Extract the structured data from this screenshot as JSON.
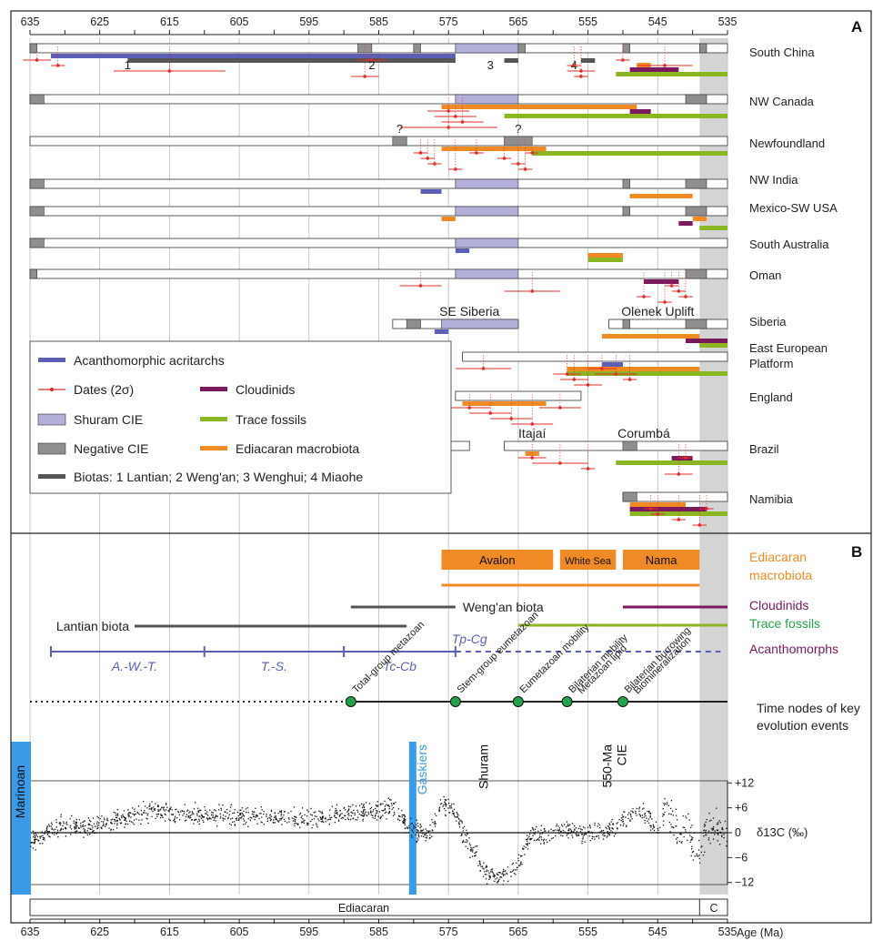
{
  "figure": {
    "panel_a_label": "A",
    "panel_b_label": "B",
    "bottom_axis_label": "Age (Ma)",
    "y_axis_label": "δ13C (‰)",
    "period_labels": [
      "Ediacaran",
      "C"
    ]
  },
  "colors": {
    "acritarchs": "#5b5fb5",
    "dates": "#e32b2b",
    "cloudinids": "#7a1a5c",
    "trace_fossils": "#8ab622",
    "shuram_cie": "#b3b0dc",
    "negative_cie": "#8f8f8f",
    "macrobiota": "#f08a24",
    "biotas": "#555555",
    "cambrian_band": "#d4d4d4",
    "marinoan": "#3a9be8",
    "gaskiers": "#3a9be8",
    "node": "#23a24a"
  },
  "chart_data": {
    "type": "timeline",
    "x_axis": {
      "label": "Age (Ma)",
      "range": [
        635,
        535
      ],
      "ticks": [
        635,
        625,
        615,
        605,
        595,
        585,
        575,
        565,
        555,
        545,
        535
      ],
      "reversed": true
    },
    "panel_a": {
      "regions": [
        {
          "name": "South China",
          "start": 635,
          "end": 535,
          "negative_cie": [
            [
              635,
              634
            ],
            [
              588,
              586
            ],
            [
              580,
              579
            ],
            [
              565,
              564
            ],
            [
              550,
              549
            ],
            [
              539,
              538
            ]
          ],
          "shuram": [
            [
              574,
              565
            ]
          ],
          "acritarchs": [
            [
              632,
              574
            ]
          ],
          "biotas": [
            [
              621,
              580
            ],
            [
              589,
              574
            ],
            [
              567,
              565
            ],
            [
              556,
              554
            ]
          ],
          "biota_labels": [
            {
              "text": "1",
              "x": 621
            },
            {
              "text": "2",
              "x": 586
            },
            {
              "text": "3",
              "x": 569
            },
            {
              "text": "4",
              "x": 557
            }
          ],
          "macrobiota": [
            [
              548,
              546
            ]
          ],
          "cloudinids": [
            [
              549,
              542
            ]
          ],
          "trace": [
            [
              551,
              535
            ]
          ],
          "dates": [
            [
              634,
              2
            ],
            [
              631,
              1
            ],
            [
              615,
              8
            ],
            [
              587,
              2
            ],
            [
              586,
              2
            ],
            [
              557,
              1
            ],
            [
              556,
              2
            ],
            [
              556,
              1
            ],
            [
              550,
              1
            ],
            [
              544,
              4
            ]
          ]
        },
        {
          "name": "NW Canada",
          "start": 635,
          "end": 535,
          "negative_cie": [
            [
              635,
              633
            ],
            [
              541,
              538
            ]
          ],
          "shuram": [
            [
              574,
              565
            ]
          ],
          "macrobiota": [
            [
              576,
              548
            ]
          ],
          "cloudinids": [
            [
              549,
              546
            ]
          ],
          "trace": [
            [
              567,
              535
            ]
          ],
          "dates": [
            [
              575,
              3
            ],
            [
              574,
              3
            ],
            [
              573,
              3
            ],
            [
              575,
              7
            ]
          ]
        },
        {
          "name": "Newfoundland",
          "start": 635,
          "end": 535,
          "negative_cie": [
            [
              583,
              581
            ],
            [
              567,
              563
            ]
          ],
          "negative_cie_q": [
            582,
            565
          ],
          "macrobiota": [
            [
              576,
              561
            ]
          ],
          "trace": [
            [
              563,
              535
            ]
          ],
          "dates": [
            [
              579,
              1
            ],
            [
              578,
              1
            ],
            [
              577,
              1
            ],
            [
              574,
              1
            ],
            [
              571,
              1
            ],
            [
              567,
              1
            ],
            [
              565,
              1
            ],
            [
              564,
              1
            ],
            [
              563,
              1
            ]
          ]
        },
        {
          "name": "NW India",
          "start": 635,
          "end": 535,
          "negative_cie": [
            [
              635,
              633
            ],
            [
              550,
              549
            ],
            [
              541,
              538
            ]
          ],
          "shuram": [
            [
              574,
              565
            ]
          ],
          "acritarchs": [
            [
              579,
              576
            ]
          ],
          "macrobiota": [
            [
              549,
              540
            ]
          ]
        },
        {
          "name": "Mexico-SW USA",
          "start": 635,
          "end": 535,
          "negative_cie": [
            [
              635,
              633
            ],
            [
              550,
              549
            ],
            [
              541,
              538
            ]
          ],
          "shuram": [
            [
              574,
              565
            ]
          ],
          "macrobiota": [
            [
              576,
              574
            ],
            [
              540,
              538
            ]
          ],
          "cloudinids": [
            [
              542,
              540
            ]
          ],
          "trace": [
            [
              539,
              535
            ]
          ]
        },
        {
          "name": "South Australia",
          "start": 635,
          "end": 535,
          "negative_cie": [
            [
              635,
              633
            ]
          ],
          "shuram": [
            [
              574,
              565
            ]
          ],
          "acritarchs": [
            [
              574,
              572
            ]
          ],
          "macrobiota": [
            [
              555,
              550
            ]
          ],
          "trace": [
            [
              555,
              550
            ]
          ]
        },
        {
          "name": "Oman",
          "start": 635,
          "end": 535,
          "negative_cie": [
            [
              635,
              634
            ],
            [
              541,
              538
            ]
          ],
          "shuram": [
            [
              574,
              565
            ]
          ],
          "cloudinids": [
            [
              547,
              542
            ]
          ],
          "dates": [
            [
              579,
              3
            ],
            [
              563,
              4
            ],
            [
              547,
              1
            ],
            [
              544,
              1
            ],
            [
              543,
              1
            ],
            [
              542,
              1
            ],
            [
              541,
              1
            ]
          ]
        },
        {
          "name": "Siberia",
          "start": 583,
          "end": 535,
          "gap": [
            565,
            552
          ],
          "negative_cie": [
            [
              581,
              579
            ],
            [
              550,
              549
            ],
            [
              541,
              538
            ]
          ],
          "shuram": [
            [
              576,
              565
            ]
          ],
          "acritarchs": [
            [
              577,
              575
            ]
          ],
          "macrobiota": [
            [
              553,
              539
            ]
          ],
          "cloudinids": [
            [
              541,
              535
            ]
          ],
          "trace": [
            [
              539,
              535
            ]
          ],
          "sub_labels": [
            {
              "text": "SE Siberia",
              "x": 572
            },
            {
              "text": "Olenek Uplift",
              "x": 545
            }
          ]
        },
        {
          "name": "East European Platform",
          "start": 573,
          "end": 535,
          "macrobiota": [
            [
              558,
              539
            ]
          ],
          "trace": [
            [
              558,
              535
            ]
          ],
          "acritarchs": [
            [
              553,
              550
            ]
          ],
          "dates": [
            [
              570,
              4
            ],
            [
              558,
              2
            ],
            [
              557,
              2
            ],
            [
              555,
              2
            ],
            [
              553,
              2
            ],
            [
              551,
              3
            ],
            [
              549,
              1
            ]
          ]
        },
        {
          "name": "England",
          "start": 574,
          "end": 556,
          "macrobiota": [
            [
              573,
              561
            ]
          ],
          "dates": [
            [
              572,
              3
            ],
            [
              569,
              3
            ],
            [
              566,
              3
            ],
            [
              563,
              3
            ],
            [
              559,
              3
            ]
          ]
        },
        {
          "name": "Brazil",
          "start": 581,
          "end": 535,
          "gap": [
            572,
            567
          ],
          "negative_cie": [
            [
              550,
              548
            ]
          ],
          "macrobiota": [
            [
              564,
              562
            ]
          ],
          "cloudinids": [
            [
              543,
              540
            ]
          ],
          "trace": [
            [
              551,
              535
            ]
          ],
          "dates": [
            [
              563,
              2
            ],
            [
              559,
              4
            ],
            [
              555,
              1
            ],
            [
              542,
              2
            ],
            [
              541,
              1
            ]
          ],
          "sub_labels": [
            {
              "text": "Itajaí",
              "x": 563
            },
            {
              "text": "Corumbá",
              "x": 547
            }
          ]
        },
        {
          "name": "Namibia",
          "start": 550,
          "end": 535,
          "negative_cie": [
            [
              550,
              548
            ]
          ],
          "macrobiota": [
            [
              549,
              541
            ]
          ],
          "cloudinids": [
            [
              549,
              538
            ]
          ],
          "trace": [
            [
              549,
              535
            ]
          ],
          "dates": [
            [
              546,
              1
            ],
            [
              545,
              1
            ],
            [
              542,
              1
            ],
            [
              539,
              1
            ],
            [
              538,
              1
            ]
          ]
        }
      ],
      "legend": [
        {
          "key": "acritarchs",
          "label": "Acanthomorphic acritarchs"
        },
        {
          "key": "dates",
          "label": "Dates (2σ)"
        },
        {
          "key": "cloudinids",
          "label": "Cloudinids"
        },
        {
          "key": "shuram",
          "label": "Shuram CIE"
        },
        {
          "key": "trace",
          "label": "Trace fossils"
        },
        {
          "key": "negative_cie",
          "label": "Negative CIE"
        },
        {
          "key": "macrobiota",
          "label": "Ediacaran macrobiota"
        },
        {
          "key": "biotas",
          "label": "Biotas: 1 Lantian; 2 Weng'an; 3 Wenghui; 4 Miaohe"
        }
      ]
    },
    "panel_b": {
      "macrobiota_assemblages": [
        {
          "name": "Avalon",
          "start": 576,
          "end": 560
        },
        {
          "name": "White Sea",
          "start": 559,
          "end": 551
        },
        {
          "name": "Nama",
          "start": 550,
          "end": 539
        }
      ],
      "macrobiota_range": [
        576,
        539
      ],
      "range_bars": [
        {
          "label": "Weng'an biota",
          "start": 589,
          "end": 574,
          "color": "biotas"
        },
        {
          "label": "Lantian biota",
          "start": 620,
          "end": 581,
          "color": "biotas"
        },
        {
          "label": "Cloudinids",
          "start": 550,
          "end": 535,
          "color": "cloudinids"
        },
        {
          "label": "Trace fossils",
          "start": 565,
          "end": 535,
          "color": "trace"
        }
      ],
      "acanthomorphs": {
        "solid": [
          632,
          574
        ],
        "dashed": [
          574,
          536
        ],
        "ticks": [
          632,
          610,
          590,
          574
        ],
        "zones": [
          {
            "label": "A.-W.-T.",
            "x": 620
          },
          {
            "label": "T.-S.",
            "x": 600
          },
          {
            "label": "Tc-Cb",
            "x": 582
          },
          {
            "label": "Tp-Cg",
            "x": 572
          }
        ]
      },
      "right_labels": [
        {
          "text": "Ediacaran",
          "color": "macrobiota"
        },
        {
          "text": "macrobiota",
          "color": "macrobiota"
        },
        {
          "text": "Cloudinids",
          "color": "cloudinids"
        },
        {
          "text": "Trace fossils",
          "color": "node"
        },
        {
          "text": "Acanthomorphs",
          "color": "cloudinids"
        },
        {
          "text": "Time nodes of key",
          "color": "plain"
        },
        {
          "text": "evolution events",
          "color": "plain"
        }
      ],
      "nodes_line": {
        "dotted": [
          635,
          589
        ],
        "solid": [
          589,
          535
        ]
      },
      "evolution_nodes": [
        {
          "age": 589,
          "label": "Total-group metazoan"
        },
        {
          "age": 574,
          "label": "Stem-group eumetazoan"
        },
        {
          "age": 565,
          "label": "Eumetazoan mobility"
        },
        {
          "age": 558,
          "label": "Bilaterian mobility",
          "label2": "Metazoan lipid"
        },
        {
          "age": 550,
          "label": "Bilaterian burrowing",
          "label2": "Biomineralization"
        }
      ],
      "isotope_axis": {
        "ticks": [
          "+12",
          "+6",
          "0",
          "−6",
          "−12"
        ],
        "values": [
          12,
          6,
          0,
          -6,
          -12
        ],
        "ylim": [
          -12.5,
          12.5
        ]
      },
      "isotope_envelope": [
        [
          635,
          -2
        ],
        [
          633,
          0
        ],
        [
          630,
          2
        ],
        [
          627,
          1.5
        ],
        [
          624,
          2.5
        ],
        [
          621,
          4
        ],
        [
          618,
          5.5
        ],
        [
          615,
          4.5
        ],
        [
          610,
          4.5
        ],
        [
          605,
          4.5
        ],
        [
          600,
          4
        ],
        [
          595,
          3.8
        ],
        [
          590,
          4.5
        ],
        [
          586,
          5.5
        ],
        [
          583,
          6
        ],
        [
          581,
          2
        ],
        [
          580,
          1
        ],
        [
          578,
          -1
        ],
        [
          576,
          7.5
        ],
        [
          574,
          5
        ],
        [
          573,
          0
        ],
        [
          572,
          -3
        ],
        [
          570,
          -9
        ],
        [
          568,
          -10.5
        ],
        [
          566,
          -10
        ],
        [
          565,
          -7
        ],
        [
          564,
          -3
        ],
        [
          563,
          0
        ],
        [
          561,
          -1
        ],
        [
          559,
          1.5
        ],
        [
          557,
          0.5
        ],
        [
          555,
          0
        ],
        [
          553,
          0
        ],
        [
          551,
          1.5
        ],
        [
          549,
          4.5
        ],
        [
          547,
          5
        ],
        [
          545,
          1
        ],
        [
          544,
          7
        ],
        [
          542,
          -1
        ],
        [
          541,
          4
        ],
        [
          540,
          -3
        ],
        [
          539,
          -5
        ],
        [
          538,
          3
        ],
        [
          537,
          1.5
        ],
        [
          536,
          -1
        ],
        [
          535,
          0
        ]
      ],
      "event_labels": [
        {
          "text": "Marinoan",
          "color": "marinoan"
        },
        {
          "text": "Gaskiers",
          "color": "gaskiers"
        },
        {
          "text": "Shuram",
          "color": "plain"
        },
        {
          "text": "550-Ma",
          "color": "plain"
        },
        {
          "text": "CIE",
          "color": "plain"
        }
      ],
      "marinoan_age": 635,
      "gaskiers_age": 580,
      "shuram_age": 570,
      "cie550_age": 552,
      "cambrian_boundary": 539
    }
  }
}
